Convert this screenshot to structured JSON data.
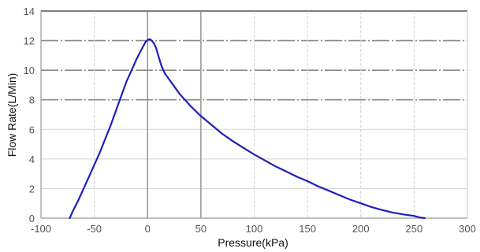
{
  "chart_data": {
    "type": "line",
    "title": "",
    "xlabel": "Pressure(kPa)",
    "ylabel": "Flow Rate(L/Min)",
    "xlim": [
      -100,
      300
    ],
    "ylim": [
      0,
      14
    ],
    "xticks": [
      -100,
      -50,
      0,
      50,
      100,
      150,
      200,
      250,
      300
    ],
    "yticks": [
      0,
      2,
      4,
      6,
      8,
      10,
      12,
      14
    ],
    "grid": true,
    "line_color": "#1f1fbf",
    "series": [
      {
        "x": [
          -73,
          -70,
          -65,
          -60,
          -55,
          -50,
          -45,
          -40,
          -35,
          -30,
          -25,
          -20,
          -15,
          -10,
          -5,
          -2,
          0,
          2,
          4,
          6,
          8,
          10,
          13,
          16,
          20,
          25,
          30,
          40,
          50,
          60,
          70,
          80,
          90,
          100,
          110,
          120,
          130,
          140,
          150,
          160,
          170,
          180,
          190,
          200,
          210,
          220,
          230,
          240,
          250,
          255,
          260
        ],
        "y": [
          0,
          0.5,
          1.2,
          2.0,
          2.8,
          3.6,
          4.4,
          5.3,
          6.2,
          7.2,
          8.2,
          9.2,
          10.0,
          10.8,
          11.5,
          11.9,
          12.05,
          12.1,
          12.0,
          11.8,
          11.5,
          11.0,
          10.3,
          9.8,
          9.4,
          8.9,
          8.4,
          7.6,
          6.9,
          6.3,
          5.7,
          5.2,
          4.75,
          4.3,
          3.9,
          3.5,
          3.15,
          2.8,
          2.5,
          2.15,
          1.85,
          1.55,
          1.25,
          1.0,
          0.75,
          0.55,
          0.38,
          0.25,
          0.15,
          0.05,
          0
        ]
      }
    ]
  }
}
